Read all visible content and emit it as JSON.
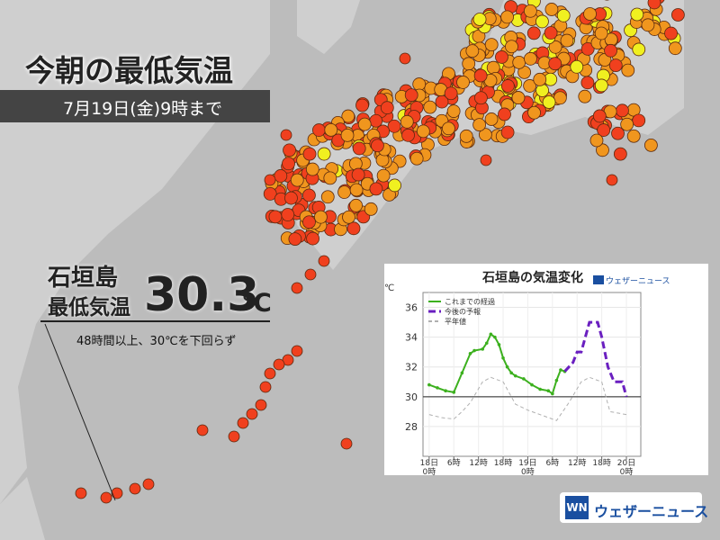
{
  "header": {
    "title": "今朝の最低気温",
    "subtitle": "7月19日(金)9時まで"
  },
  "callout": {
    "place": "石垣島",
    "label": "最低気温",
    "value": "30.3",
    "unit": "℃",
    "note": "48時間以上、30℃を下回らず"
  },
  "logo": "ウェザーニュース",
  "chart_data": {
    "type": "line",
    "title": "石垣島の気温変化",
    "ylabel": "℃",
    "logo": "ウェザーニュース",
    "xlim": [
      -1.5,
      51.5
    ],
    "ylim": [
      26,
      37
    ],
    "yticks": [
      28,
      30,
      32,
      34,
      36
    ],
    "xticks": [
      {
        "value": 0,
        "label": "18日\n0時"
      },
      {
        "value": 6,
        "label": "6時"
      },
      {
        "value": 12,
        "label": "12時"
      },
      {
        "value": 18,
        "label": "18時"
      },
      {
        "value": 24,
        "label": "19日\n0時"
      },
      {
        "value": 30,
        "label": "6時"
      },
      {
        "value": 36,
        "label": "12時"
      },
      {
        "value": 42,
        "label": "18時"
      },
      {
        "value": 48,
        "label": "20日\n0時"
      }
    ],
    "hline": 30,
    "grid": true,
    "legend": "upper-left",
    "series": [
      {
        "name": "これまでの経過",
        "color": "#3cb01e",
        "style": "solid",
        "x": [
          0,
          2,
          4,
          6,
          8,
          10,
          11,
          13,
          14,
          15,
          16,
          17,
          18,
          19,
          20,
          21,
          23,
          25,
          27,
          29,
          30,
          31,
          32,
          33
        ],
        "values": [
          30.8,
          30.6,
          30.4,
          30.3,
          31.6,
          32.9,
          33.1,
          33.2,
          33.6,
          34.2,
          34,
          33.5,
          32.6,
          32,
          31.6,
          31.4,
          31.2,
          30.8,
          30.5,
          30.4,
          30.2,
          31.1,
          31.8,
          31.7
        ]
      },
      {
        "name": "今後の予報",
        "color": "#6a1fc0",
        "style": "dashed",
        "x": [
          33,
          35,
          36,
          37,
          38,
          39,
          41,
          42,
          43.5,
          45,
          47,
          48
        ],
        "values": [
          31.7,
          32.3,
          33,
          33,
          34,
          35,
          35,
          34,
          32,
          31,
          31,
          30
        ]
      },
      {
        "name": "平年値",
        "color": "#b0b0b0",
        "style": "dotted",
        "x": [
          0,
          3,
          6,
          8,
          10,
          13,
          15,
          18,
          21,
          24,
          27,
          30,
          31,
          34,
          37,
          39,
          42,
          44,
          46,
          48
        ],
        "values": [
          28.8,
          28.6,
          28.5,
          29,
          29.6,
          31,
          31.3,
          31,
          29.5,
          29.1,
          28.8,
          28.5,
          28.4,
          29.6,
          31,
          31.3,
          31,
          29,
          28.9,
          28.8
        ]
      }
    ]
  }
}
